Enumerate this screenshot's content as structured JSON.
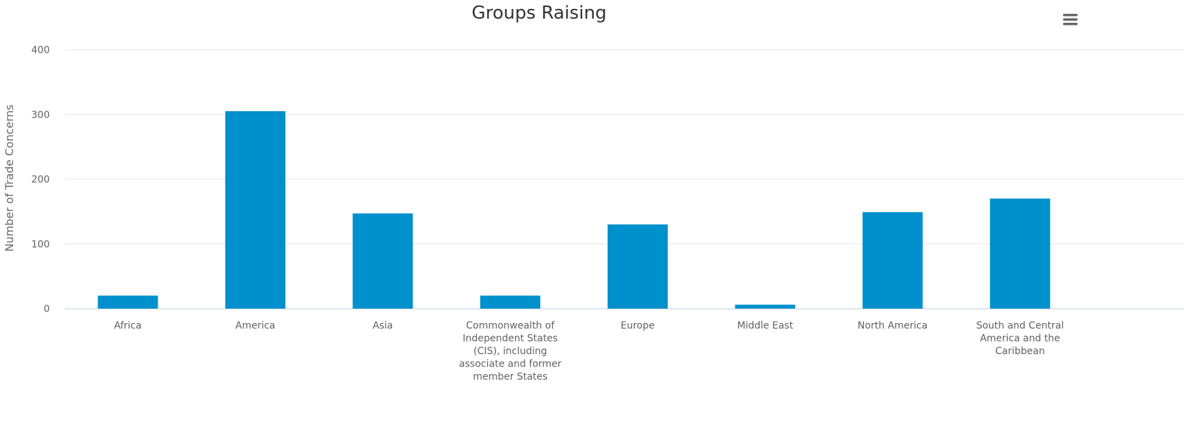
{
  "chart_data": {
    "type": "bar",
    "title": "Groups Raising",
    "xlabel": "",
    "ylabel": "Number of Trade Concerns",
    "ylim": [
      0,
      400
    ],
    "yticks": [
      0,
      100,
      200,
      300,
      400
    ],
    "grid": true,
    "legend": "none",
    "bar_color": "#0090cc",
    "categories": [
      "Africa",
      "America",
      "Asia",
      "Commonwealth of Independent States (CIS), including associate and former member States",
      "Europe",
      "Middle East",
      "North America",
      "South and Central America and the Caribbean"
    ],
    "values": [
      20,
      305,
      147,
      20,
      130,
      6,
      149,
      170
    ]
  },
  "menu": {
    "icon": "hamburger-menu-icon"
  }
}
